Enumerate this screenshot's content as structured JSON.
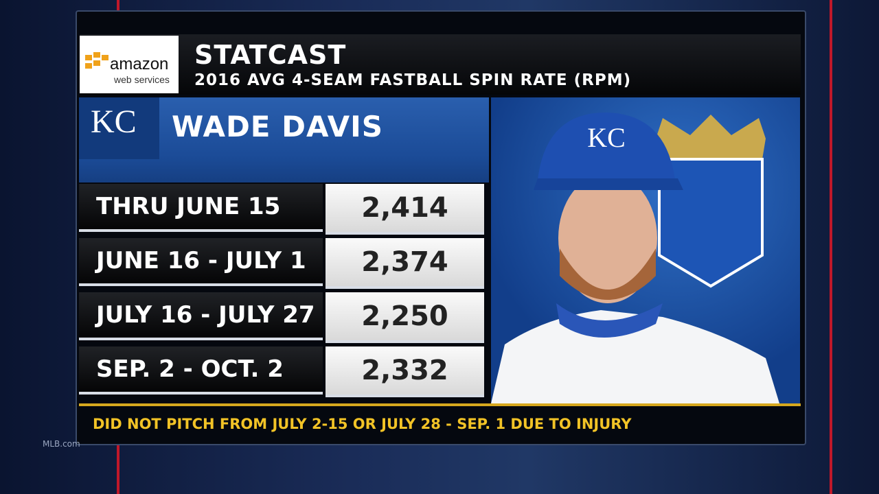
{
  "header": {
    "logo_brand": "amazon",
    "logo_sub": "web services",
    "title": "STATCAST",
    "subtitle": "2016 AVG 4-SEAM FASTBALL SPIN RATE (RPM)"
  },
  "player": {
    "team_logo": "KC",
    "name": "WADE DAVIS"
  },
  "table": {
    "rows": [
      [
        "THRU JUNE 15",
        "2,414"
      ],
      [
        "JUNE 16 - JULY 1",
        "2,374"
      ],
      [
        "JULY 16 - JULY 27",
        "2,250"
      ],
      [
        "SEP. 2 - OCT. 2",
        "2,332"
      ]
    ]
  },
  "footnote": "DID NOT PITCH FROM JULY 2-15 OR JULY 28 - SEP. 1 DUE TO INJURY",
  "watermark": "MLB.com"
}
